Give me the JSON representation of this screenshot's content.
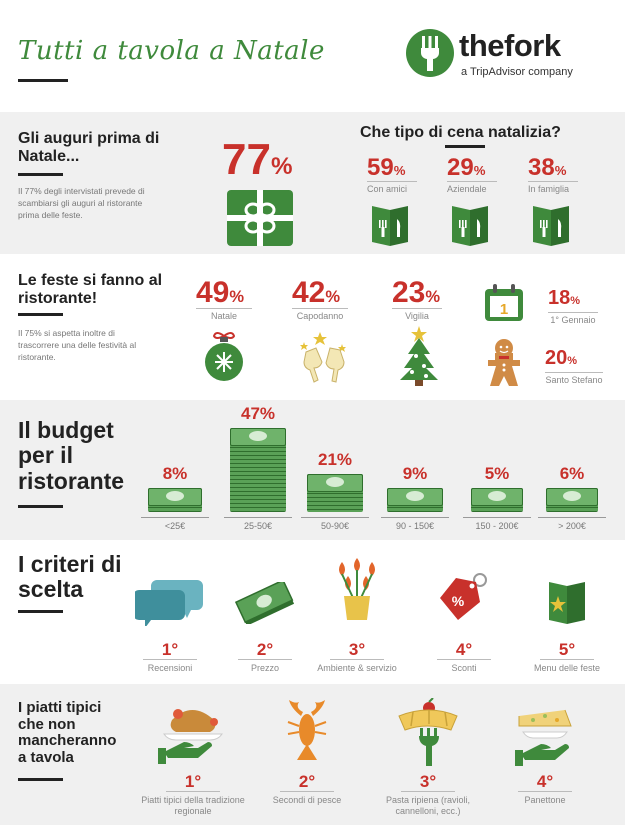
{
  "header": {
    "title": "Tutti a tavola a Natale",
    "brand": "thefork",
    "brand_sub": "a TripAdvisor company"
  },
  "colors": {
    "accent_red": "#c8312b",
    "brand_green": "#3f8a3c",
    "band_grey": "#f0f0f0"
  },
  "auguri": {
    "heading": "Gli auguri prima di Natale...",
    "description": "Il 77% degli intervistati prevede di scambiarsi gli auguri al ristorante prima delle feste.",
    "value": "77",
    "unit": "%"
  },
  "cena": {
    "heading": "Che tipo di cena natalizia?",
    "items": [
      {
        "value": "59",
        "unit": "%",
        "label": "Con amici",
        "icon": "menu-card-icon"
      },
      {
        "value": "29",
        "unit": "%",
        "label": "Aziendale",
        "icon": "menu-card-icon"
      },
      {
        "value": "38",
        "unit": "%",
        "label": "In famiglia",
        "icon": "menu-card-icon"
      }
    ]
  },
  "feste": {
    "heading": "Le feste si fanno al ristorante!",
    "description": "Il 75% si aspetta inoltre di trascorrere una delle festività al ristorante.",
    "items": [
      {
        "value": "49",
        "unit": "%",
        "label": "Natale",
        "icon": "bauble-icon"
      },
      {
        "value": "42",
        "unit": "%",
        "label": "Capodanno",
        "icon": "champagne-icon"
      },
      {
        "value": "23",
        "unit": "%",
        "label": "Vigilia",
        "icon": "christmas-tree-icon"
      },
      {
        "value": "18",
        "unit": "%",
        "label": "1° Gennaio",
        "icon": "calendar-icon",
        "icon_text": "1"
      },
      {
        "value": "20",
        "unit": "%",
        "label": "Santo Stefano",
        "icon": "gingerbread-icon"
      }
    ]
  },
  "budget": {
    "heading": "Il budget per il ristorante",
    "items": [
      {
        "pct": "8%",
        "value": 8,
        "label": "<25€"
      },
      {
        "pct": "47%",
        "value": 47,
        "label": "25-50€"
      },
      {
        "pct": "21%",
        "value": 21,
        "label": "50-90€"
      },
      {
        "pct": "9%",
        "value": 9,
        "label": "90 - 150€"
      },
      {
        "pct": "5%",
        "value": 5,
        "label": "150 - 200€"
      },
      {
        "pct": "6%",
        "value": 6,
        "label": "> 200€"
      }
    ]
  },
  "criteri": {
    "heading": "I criteri di scelta",
    "items": [
      {
        "rank": "1°",
        "label": "Recensioni",
        "icon": "speech-bubbles-icon"
      },
      {
        "rank": "2°",
        "label": "Prezzo",
        "icon": "banknotes-icon"
      },
      {
        "rank": "3°",
        "label": "Ambiente & servizio",
        "icon": "flowers-vase-icon"
      },
      {
        "rank": "4°",
        "label": "Sconti",
        "icon": "discount-tag-icon",
        "icon_text": "%"
      },
      {
        "rank": "5°",
        "label": "Menu delle feste",
        "icon": "festive-menu-icon"
      }
    ]
  },
  "piatti": {
    "heading": "I piatti tipici che non mancheranno a tavola",
    "items": [
      {
        "rank": "1°",
        "label": "Piatti tipici della tradizione regionale",
        "icon": "roast-dish-icon"
      },
      {
        "rank": "2°",
        "label": "Secondi di pesce",
        "icon": "lobster-icon"
      },
      {
        "rank": "3°",
        "label": "Pasta ripiena (ravioli, cannelloni, ecc.)",
        "icon": "pasta-fork-icon"
      },
      {
        "rank": "4°",
        "label": "Panettone",
        "icon": "panettone-icon"
      }
    ]
  }
}
